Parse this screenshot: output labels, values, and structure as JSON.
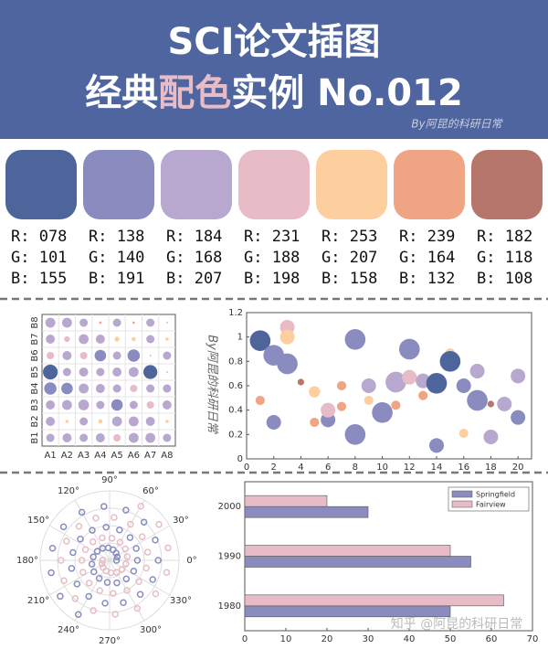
{
  "header": {
    "title": "SCI论文插图",
    "subtitle_parts": [
      "经典",
      "配色",
      "实例 No.012"
    ],
    "subtitle_colors": [
      "#ffffff",
      "#E7BCC6",
      "#ffffff"
    ],
    "credit": "By阿昆的科研日常"
  },
  "palette": [
    {
      "color": "#4E659B",
      "r": "R: 078",
      "g": "G: 101",
      "b": "B: 155"
    },
    {
      "color": "#8A8CBF",
      "r": "R: 138",
      "g": "G: 140",
      "b": "B: 191"
    },
    {
      "color": "#B8A8CF",
      "r": "R: 184",
      "g": "G: 168",
      "b": "B: 207"
    },
    {
      "color": "#E7BCC6",
      "r": "R: 231",
      "g": "G: 188",
      "b": "B: 198"
    },
    {
      "color": "#FDCF9E",
      "r": "R: 253",
      "g": "G: 207",
      "b": "B: 158"
    },
    {
      "color": "#EFA484",
      "r": "R: 239",
      "g": "G: 164",
      "b": "B: 132"
    },
    {
      "color": "#B6766C",
      "r": "R: 182",
      "g": "G: 118",
      "b": "B: 108"
    }
  ],
  "chart_data": [
    {
      "type": "bubble-matrix",
      "x_categories": [
        "A1",
        "A2",
        "A3",
        "A4",
        "A5",
        "A6",
        "A7",
        "A8"
      ],
      "y_categories": [
        "B1",
        "B2",
        "B3",
        "B4",
        "B5",
        "B6",
        "B7",
        "B8"
      ],
      "colormap": [
        "#EFA484",
        "#FDCF9E",
        "#E7BCC6",
        "#B8A8CF",
        "#8A8CBF",
        "#4E659B"
      ],
      "values": [
        [
          0.5,
          0.55,
          0.5,
          0.55,
          0.45,
          0.6,
          0.6,
          0.5
        ],
        [
          0.55,
          0.2,
          0.5,
          0.25,
          0.6,
          0.6,
          0.55,
          0.2
        ],
        [
          0.55,
          0.6,
          0.65,
          0.5,
          0.7,
          0.5,
          0.45,
          0.55
        ],
        [
          0.75,
          0.7,
          0.6,
          0.55,
          0.5,
          0.45,
          0.5,
          0.5
        ],
        [
          0.9,
          0.5,
          0.55,
          0.5,
          0.55,
          0.6,
          0.85,
          0.1
        ],
        [
          0.45,
          0.55,
          0.45,
          0.7,
          0.5,
          0.75,
          0.1,
          0.5
        ],
        [
          0.55,
          0.35,
          0.6,
          0.55,
          0.3,
          0.25,
          0.5,
          0.2
        ],
        [
          0.6,
          0.6,
          0.5,
          0.15,
          0.5,
          0.15,
          0.5,
          0.1
        ]
      ],
      "grid": true
    },
    {
      "type": "scatter",
      "watermark": "By阿昆的科研日常",
      "x": [
        1,
        1,
        2,
        2,
        3,
        3,
        3,
        4,
        5,
        5,
        6,
        6,
        7,
        7,
        8,
        8,
        9,
        9,
        10,
        11,
        11,
        12,
        12,
        13,
        13,
        14,
        14,
        15,
        15,
        16,
        16,
        17,
        17,
        18,
        18,
        19,
        20,
        20
      ],
      "values": [
        0.97,
        0.48,
        0.85,
        0.3,
        1.08,
        0.78,
        1.0,
        0.63,
        0.55,
        0.3,
        0.32,
        0.4,
        0.6,
        0.43,
        0.98,
        0.2,
        0.6,
        0.48,
        0.38,
        0.63,
        0.44,
        0.9,
        0.67,
        0.64,
        0.52,
        0.62,
        0.11,
        0.87,
        0.8,
        0.6,
        0.21,
        0.72,
        0.48,
        0.45,
        0.18,
        0.45,
        0.68,
        0.34
      ],
      "sizes": [
        200,
        40,
        200,
        100,
        100,
        200,
        100,
        20,
        60,
        40,
        100,
        100,
        40,
        40,
        200,
        200,
        100,
        40,
        200,
        200,
        40,
        200,
        100,
        100,
        40,
        200,
        100,
        40,
        200,
        100,
        40,
        100,
        200,
        20,
        100,
        100,
        100,
        100
      ],
      "colors": [
        "#4E659B",
        "#EFA484",
        "#8A8CBF",
        "#8A8CBF",
        "#E7BCC6",
        "#8A8CBF",
        "#FDCF9E",
        "#B6766C",
        "#FDCF9E",
        "#EFA484",
        "#8A8CBF",
        "#E7BCC6",
        "#EFA484",
        "#EFA484",
        "#8A8CBF",
        "#8A8CBF",
        "#B8A8CF",
        "#FDCF9E",
        "#8A8CBF",
        "#B8A8CF",
        "#EFA484",
        "#8A8CBF",
        "#E7BCC6",
        "#B8A8CF",
        "#EFA484",
        "#4E659B",
        "#8A8CBF",
        "#FDCF9E",
        "#4E659B",
        "#8A8CBF",
        "#FDCF9E",
        "#B8A8CF",
        "#8A8CBF",
        "#B6766C",
        "#B8A8CF",
        "#B8A8CF",
        "#B8A8CF",
        "#8A8CBF"
      ],
      "xlim": [
        0,
        21
      ],
      "xticks": [
        0,
        2,
        4,
        6,
        8,
        10,
        12,
        14,
        16,
        18,
        20
      ],
      "ylim": [
        0,
        1.2
      ],
      "yticks": [
        0,
        0.2,
        0.4,
        0.6,
        0.8,
        1,
        1.2
      ]
    },
    {
      "type": "polar-scatter",
      "rlim": [
        0,
        100
      ],
      "thetaticks": [
        {
          "value": 0,
          "label": "0°"
        },
        {
          "value": 30,
          "label": "30°"
        },
        {
          "value": 60,
          "label": "60°"
        },
        {
          "value": 90,
          "label": "90°"
        },
        {
          "value": 120,
          "label": "120°"
        },
        {
          "value": 150,
          "label": "150°"
        },
        {
          "value": 180,
          "label": "180°"
        },
        {
          "value": 210,
          "label": "210°"
        },
        {
          "value": 240,
          "label": "240°"
        },
        {
          "value": 270,
          "label": "270°"
        },
        {
          "value": 300,
          "label": "300°"
        },
        {
          "value": 330,
          "label": "330°"
        }
      ],
      "series": [
        {
          "color": "#8A8CBF",
          "x": [
            0,
            24,
            48,
            72,
            96,
            120,
            144,
            168,
            192,
            216,
            240,
            264,
            288,
            312,
            336,
            360,
            384,
            408,
            432,
            456,
            480,
            504,
            528,
            552,
            576,
            600,
            624,
            648,
            672,
            696,
            720,
            744,
            768,
            792,
            816,
            840,
            864,
            888,
            912,
            936,
            960
          ],
          "values": [
            10,
            12,
            14,
            16,
            18,
            20,
            22,
            24,
            26,
            28,
            30,
            32,
            34,
            36,
            38,
            40,
            42,
            44,
            46,
            48,
            50,
            52,
            54,
            56,
            58,
            60,
            62,
            64,
            66,
            68,
            70,
            72,
            74,
            76,
            78,
            80,
            82,
            84,
            86,
            88,
            90
          ]
        },
        {
          "color": "#E7BCC6",
          "x": [
            180,
            204,
            228,
            252,
            276,
            300,
            324,
            348,
            372,
            396,
            420,
            444,
            468,
            492,
            516,
            540,
            564,
            588,
            612,
            636,
            660,
            684,
            708,
            732,
            756,
            780,
            804,
            828,
            852,
            876,
            900,
            924,
            948,
            972,
            996,
            1020,
            1044,
            1068,
            1092,
            1116,
            1140
          ],
          "values": [
            10,
            12,
            14,
            16,
            18,
            20,
            22,
            24,
            26,
            28,
            30,
            32,
            34,
            36,
            38,
            40,
            42,
            44,
            46,
            48,
            50,
            52,
            54,
            56,
            58,
            60,
            62,
            64,
            66,
            68,
            70,
            72,
            74,
            76,
            78,
            80,
            82,
            84,
            86,
            88,
            90
          ]
        }
      ]
    },
    {
      "type": "barh",
      "categories": [
        "1980",
        "1990",
        "2000"
      ],
      "series": [
        {
          "name": "Springfield",
          "color": "#8A8CBF",
          "values": [
            50,
            55,
            30
          ]
        },
        {
          "name": "Fairview",
          "color": "#E7BCC6",
          "values": [
            63,
            50,
            20
          ]
        }
      ],
      "xlim": [
        0,
        70
      ],
      "xticks": [
        0,
        10,
        20,
        30,
        40,
        50,
        60,
        70
      ],
      "legend": "upper-right"
    }
  ],
  "footer": {
    "watermark": "知乎 @阿昆的科研日常"
  }
}
